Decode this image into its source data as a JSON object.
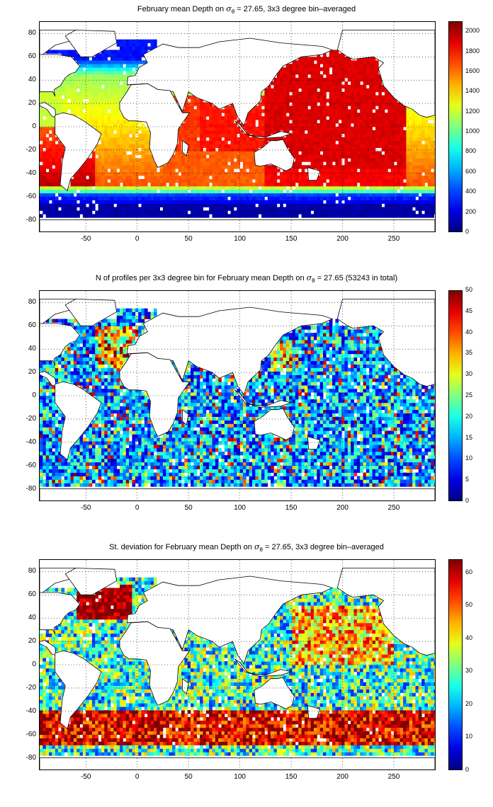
{
  "chart_data": [
    {
      "type": "heatmap",
      "title_prefix": "February mean Depth on ",
      "title_sigma": "σ",
      "title_sub": "θ",
      "title_suffix": " = 27.65, 3x3 degree bin–averaged",
      "xlim": [
        -95,
        290
      ],
      "ylim": [
        -90,
        90
      ],
      "xticks": [
        -50,
        0,
        50,
        100,
        150,
        200,
        250
      ],
      "yticks": [
        80,
        60,
        40,
        20,
        0,
        -20,
        -40,
        -60,
        -80
      ],
      "colorbar": {
        "min": 0,
        "max": 2100,
        "ticks": [
          2000,
          1800,
          1600,
          1400,
          1200,
          1000,
          800,
          600,
          400,
          200,
          0
        ]
      },
      "colormap": "jet",
      "description_of_field": "mean depth of isopycnal sigma-theta 27.65, gridded 3x3 degrees"
    },
    {
      "type": "heatmap",
      "title_prefix": "N of profiles per 3x3 degree bin for February mean Depth on ",
      "title_sigma": "σ",
      "title_sub": "θ",
      "title_suffix": " = 27.65 (53243 in total)",
      "xlim": [
        -95,
        290
      ],
      "ylim": [
        -90,
        90
      ],
      "xticks": [
        -50,
        0,
        50,
        100,
        150,
        200,
        250
      ],
      "yticks": [
        80,
        60,
        40,
        20,
        0,
        -20,
        -40,
        -60,
        -80
      ],
      "colorbar": {
        "min": 0,
        "max": 50,
        "ticks": [
          50,
          45,
          40,
          35,
          30,
          25,
          20,
          15,
          10,
          5,
          0
        ]
      },
      "colormap": "jet"
    },
    {
      "type": "heatmap",
      "title_prefix": "St. deviation for February mean Depth on ",
      "title_sigma": "σ",
      "title_sub": "θ",
      "title_suffix": " = 27.65, 3x3 degree bin–averaged",
      "xlim": [
        -95,
        290
      ],
      "ylim": [
        -90,
        90
      ],
      "xticks": [
        -50,
        0,
        50,
        100,
        150,
        200,
        250
      ],
      "yticks": [
        80,
        60,
        40,
        20,
        0,
        -20,
        -40,
        -60,
        -80
      ],
      "colorbar": {
        "min": 0,
        "max": 64,
        "ticks": [
          60,
          50,
          40,
          30,
          20,
          10,
          0
        ]
      },
      "colormap": "jet"
    }
  ]
}
